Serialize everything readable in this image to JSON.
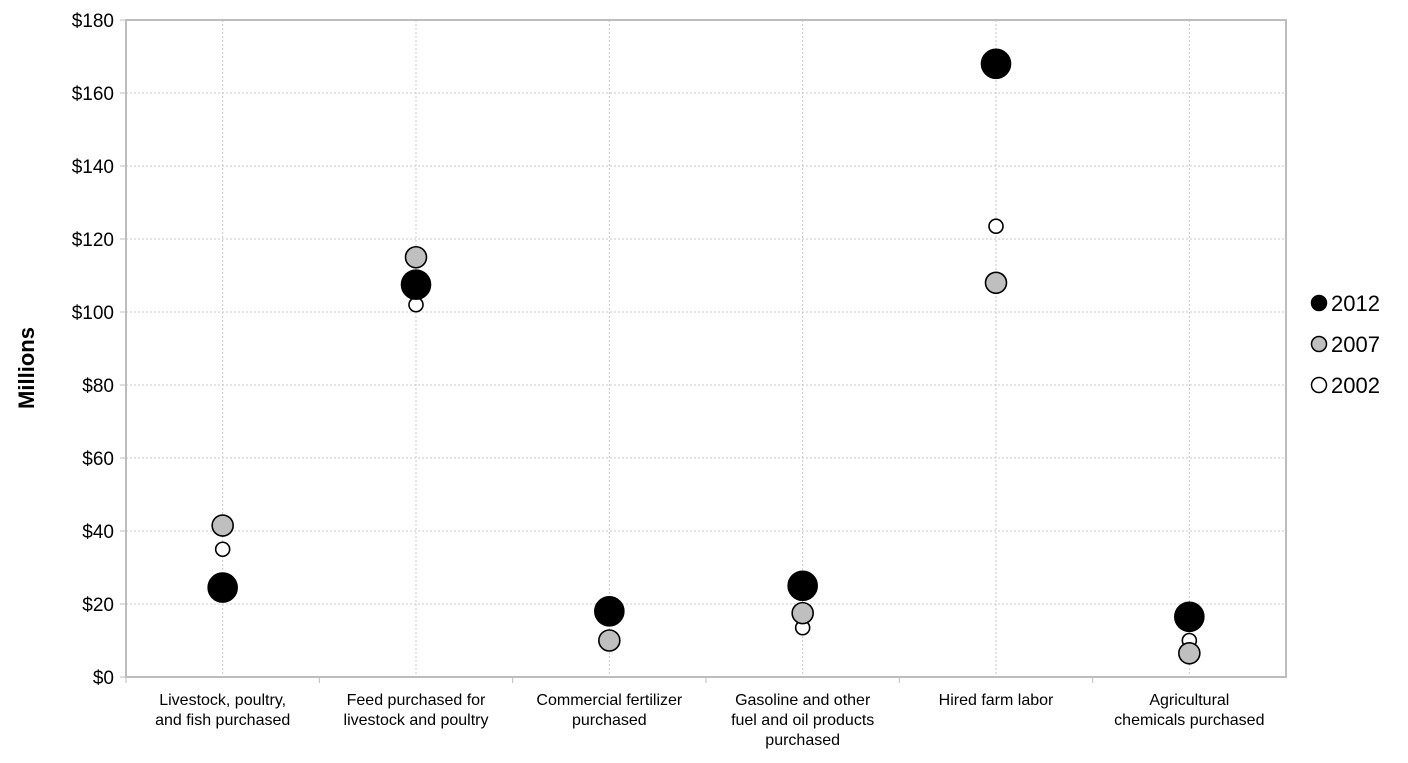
{
  "chart_data": {
    "type": "scatter",
    "title": "",
    "xlabel": "",
    "ylabel": "Millions",
    "ylim": [
      0,
      180
    ],
    "y_ticks": [
      0,
      20,
      40,
      60,
      80,
      100,
      120,
      140,
      160,
      180
    ],
    "y_tick_labels": [
      "$0",
      "$20",
      "$40",
      "$60",
      "$80",
      "$100",
      "$120",
      "$140",
      "$160",
      "$180"
    ],
    "categories": [
      [
        "Livestock, poultry,",
        "and fish purchased"
      ],
      [
        "Feed purchased for",
        "livestock and poultry"
      ],
      [
        "Commercial fertilizer",
        "purchased"
      ],
      [
        "Gasoline and other",
        "fuel and oil products",
        "purchased"
      ],
      [
        "Hired farm labor"
      ],
      [
        "Agricultural",
        "chemicals purchased"
      ]
    ],
    "grid": true,
    "legend_position": "right",
    "series": [
      {
        "name": "2002",
        "fill": "#ffffff",
        "values": [
          35,
          102,
          10.5,
          13.5,
          123.5,
          10
        ]
      },
      {
        "name": "2007",
        "fill": "#bfbfbf",
        "values": [
          41.5,
          115,
          10,
          17.5,
          108,
          6.5
        ]
      },
      {
        "name": "2012",
        "fill": "#000000",
        "values": [
          24.5,
          107.5,
          18,
          25,
          168,
          16.5
        ]
      }
    ],
    "legend_order": [
      "2012",
      "2007",
      "2002"
    ]
  }
}
